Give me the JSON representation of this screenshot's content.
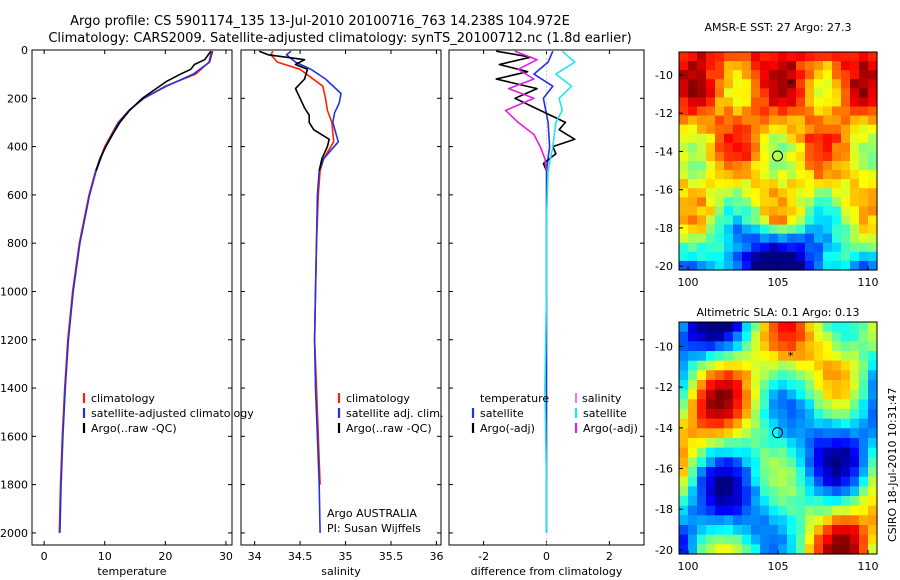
{
  "header": {
    "line1": "Argo profile: CS 5901174_135 13-Jul-2010 20100716_763 14.238S 104.972E",
    "line2": "Climatology: CARS2009. Satellite-adjusted climatology: synTS_20100712.nc (1.8d earlier)"
  },
  "colors": {
    "red": "#ff2200",
    "blue": "#2233dd",
    "black": "#000000",
    "magenta": "#e21ee2",
    "cyan": "#22e5ee"
  },
  "credit": "CSIRO 18-Jul-2010 10:31:47",
  "chart_data": [
    {
      "type": "line",
      "name": "temperature",
      "xlabel": "temperature",
      "ylabel": "",
      "xlim": [
        -2,
        31
      ],
      "ylim": [
        2050,
        0
      ],
      "xticks": [
        0,
        10,
        20,
        30
      ],
      "yticks": [
        0,
        200,
        400,
        600,
        800,
        1000,
        1200,
        1400,
        1600,
        1800,
        2000
      ],
      "legend": [
        "climatology",
        "satellite-adjusted climatology",
        "Argo(..raw -QC)"
      ],
      "series": [
        {
          "name": "climatology",
          "color": "red",
          "depth": [
            5,
            50,
            100,
            150,
            200,
            250,
            300,
            400,
            500,
            600,
            800,
            1000,
            1200,
            1400,
            1600,
            1800,
            2000
          ],
          "values": [
            27.6,
            27.2,
            25.0,
            20.0,
            16.5,
            14.0,
            12.2,
            10.0,
            8.5,
            7.4,
            5.8,
            4.7,
            3.9,
            3.4,
            3.0,
            2.7,
            2.5
          ]
        },
        {
          "name": "satellite-adjusted climatology",
          "color": "blue",
          "depth": [
            5,
            50,
            100,
            150,
            200,
            250,
            300,
            400,
            500,
            600,
            800,
            1000,
            1200,
            1400,
            1600,
            1800,
            2000
          ],
          "values": [
            27.8,
            27.3,
            24.6,
            20.2,
            16.4,
            14.0,
            12.3,
            10.1,
            8.6,
            7.5,
            5.9,
            4.8,
            4.0,
            3.5,
            3.1,
            2.8,
            2.6
          ]
        },
        {
          "name": "Argo(..raw -QC)",
          "color": "black",
          "depth": [
            5,
            40,
            60,
            80,
            100,
            130,
            160,
            200,
            250,
            300,
            350,
            400,
            450,
            500
          ],
          "values": [
            27.5,
            26.5,
            24.8,
            24.2,
            22.5,
            20.2,
            18.5,
            16.2,
            14.1,
            12.5,
            11.3,
            10.2,
            9.2,
            8.6
          ]
        }
      ]
    },
    {
      "type": "line",
      "name": "salinity",
      "xlabel": "salinity",
      "ylabel": "",
      "xlim": [
        33.85,
        36.05
      ],
      "ylim": [
        2050,
        0
      ],
      "xticks": [
        34,
        34.5,
        35,
        35.5,
        36
      ],
      "legend": [
        "climatology",
        "satellite adj. clim.",
        "Argo(..raw -QC)"
      ],
      "annotation": [
        "Argo AUSTRALIA",
        "PI: Susan Wijffels"
      ],
      "series": [
        {
          "name": "climatology",
          "color": "red",
          "depth": [
            5,
            20,
            50,
            80,
            150,
            200,
            250,
            300,
            380,
            450,
            500,
            600,
            800,
            1000,
            1200,
            1400,
            1600,
            1800
          ],
          "values": [
            34.2,
            34.18,
            34.25,
            34.5,
            34.75,
            34.78,
            34.8,
            34.85,
            34.87,
            34.76,
            34.72,
            34.7,
            34.68,
            34.67,
            34.66,
            34.68,
            34.7,
            34.72
          ]
        },
        {
          "name": "satellite adj. clim.",
          "color": "blue",
          "depth": [
            5,
            20,
            50,
            80,
            120,
            180,
            220,
            260,
            300,
            380,
            450,
            500,
            600,
            800,
            1000,
            1200,
            1400,
            1600,
            1800,
            2000
          ],
          "values": [
            34.4,
            34.35,
            34.45,
            34.62,
            34.78,
            34.95,
            34.93,
            34.88,
            34.86,
            34.92,
            34.76,
            34.71,
            34.69,
            34.68,
            34.67,
            34.66,
            34.67,
            34.69,
            34.71,
            34.72
          ]
        },
        {
          "name": "Argo(..raw -QC)",
          "color": "black",
          "depth": [
            5,
            20,
            40,
            60,
            80,
            120,
            160,
            200,
            240,
            270,
            300,
            330,
            370,
            400,
            450,
            500
          ],
          "values": [
            34.05,
            34.15,
            34.55,
            34.45,
            34.58,
            34.55,
            34.45,
            34.5,
            34.55,
            34.6,
            34.6,
            34.65,
            34.82,
            34.8,
            34.74,
            34.71
          ]
        }
      ]
    },
    {
      "type": "line",
      "name": "difference",
      "xlabel": "difference from climatology",
      "ylabel": "",
      "xlim": [
        -3.1,
        3.1
      ],
      "ylim": [
        2050,
        0
      ],
      "xticks": [
        -2,
        0,
        2
      ],
      "legend": [
        "temperature",
        "satellite",
        "Argo(-adj)",
        "salinity",
        "satellite",
        "Argo(-adj)"
      ],
      "series": [
        {
          "name": "temperature satellite",
          "color": "blue",
          "depth": [
            5,
            50,
            100,
            150,
            200,
            300,
            400,
            500,
            700,
            1000,
            1400,
            1800,
            2000
          ],
          "values": [
            0.2,
            0.05,
            -0.4,
            0.2,
            -0.1,
            0.05,
            0.1,
            0.0,
            0.0,
            0.0,
            0.0,
            0.0,
            0.0
          ]
        },
        {
          "name": "temperature Argo(-adj)",
          "color": "black",
          "depth": [
            5,
            30,
            60,
            90,
            120,
            160,
            200,
            250,
            300,
            330,
            370,
            400,
            430,
            470,
            500
          ],
          "values": [
            -1.6,
            -0.5,
            -1.5,
            -0.6,
            -1.6,
            -0.3,
            -1.0,
            -0.2,
            0.6,
            0.4,
            0.9,
            0.2,
            0.3,
            -0.1,
            0.0
          ]
        },
        {
          "name": "salinity satellite",
          "color": "cyan",
          "depth": [
            5,
            50,
            100,
            150,
            200,
            250,
            300,
            400,
            500,
            700,
            1000,
            1400,
            1800,
            2000
          ],
          "values": [
            0.5,
            0.9,
            0.3,
            0.8,
            0.4,
            0.5,
            0.3,
            0.2,
            0.05,
            0.0,
            0.0,
            -0.05,
            0.0,
            0.0
          ]
        },
        {
          "name": "salinity Argo(-adj)",
          "color": "magenta",
          "depth": [
            5,
            40,
            80,
            120,
            160,
            200,
            250,
            300,
            350,
            400,
            450,
            500
          ],
          "values": [
            -1.0,
            -0.3,
            -0.9,
            -0.4,
            -1.2,
            -0.4,
            -1.3,
            -0.9,
            -0.4,
            -0.2,
            -0.05,
            0.0
          ]
        }
      ]
    },
    {
      "type": "heatmap",
      "name": "sst-map",
      "title": "AMSR-E SST: 27 Argo: 27.3",
      "xlim": [
        99.5,
        110.5
      ],
      "ylim": [
        -20.2,
        -8.8
      ],
      "xticks": [
        100,
        105,
        110
      ],
      "yticks": [
        -10,
        -12,
        -14,
        -16,
        -18,
        -20
      ],
      "profile_marker": {
        "lon": 104.972,
        "lat": -14.238
      },
      "other_marker": {
        "lon": 105.7,
        "lat": -10.5
      }
    },
    {
      "type": "heatmap",
      "name": "sla-map",
      "title": "Altimetric SLA: 0.1 Argo: 0.13",
      "xlim": [
        99.5,
        110.5
      ],
      "ylim": [
        -20.2,
        -8.8
      ],
      "xticks": [
        100,
        105,
        110
      ],
      "yticks": [
        -10,
        -12,
        -14,
        -16,
        -18,
        -20
      ],
      "profile_marker": {
        "lon": 104.972,
        "lat": -14.238
      },
      "other_marker": {
        "lon": 105.7,
        "lat": -10.5
      }
    }
  ]
}
